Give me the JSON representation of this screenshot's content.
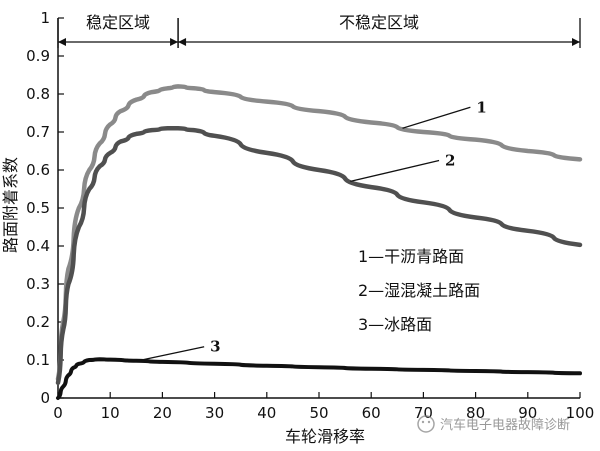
{
  "chart_data": {
    "type": "line",
    "xlabel": "车轮滑移率",
    "ylabel": "路面附着系数",
    "xlim": [
      0,
      100
    ],
    "ylim": [
      0,
      1
    ],
    "xticks": [
      "0",
      "10",
      "20",
      "30",
      "40",
      "50",
      "60",
      "70",
      "80",
      "90",
      "100"
    ],
    "yticks": [
      "0",
      "0.1",
      "0.2",
      "0.3",
      "0.4",
      "0.5",
      "0.6",
      "0.7",
      "0.8",
      "0.9",
      "1"
    ],
    "regions": [
      {
        "label": "稳定区域",
        "x_start": 0,
        "x_end": 23
      },
      {
        "label": "不稳定区域",
        "x_start": 23,
        "x_end": 100
      }
    ],
    "series": [
      {
        "name": "1",
        "legend": "1—干沥青路面",
        "color": "#8a8a8a",
        "points": [
          [
            0,
            0.05
          ],
          [
            1,
            0.2
          ],
          [
            2,
            0.34
          ],
          [
            4,
            0.5
          ],
          [
            6,
            0.6
          ],
          [
            8,
            0.67
          ],
          [
            10,
            0.72
          ],
          [
            12,
            0.755
          ],
          [
            15,
            0.785
          ],
          [
            18,
            0.805
          ],
          [
            21,
            0.815
          ],
          [
            23,
            0.82
          ],
          [
            26,
            0.815
          ],
          [
            30,
            0.805
          ],
          [
            40,
            0.78
          ],
          [
            50,
            0.755
          ],
          [
            60,
            0.725
          ],
          [
            70,
            0.7
          ],
          [
            80,
            0.68
          ],
          [
            90,
            0.65
          ],
          [
            100,
            0.628
          ]
        ],
        "callout": {
          "x": 66,
          "y": 0.71,
          "lx": 79,
          "ly": 0.765
        }
      },
      {
        "name": "2",
        "legend": "2—湿混凝土路面",
        "color": "#505050",
        "points": [
          [
            0,
            0.04
          ],
          [
            1,
            0.18
          ],
          [
            2,
            0.3
          ],
          [
            4,
            0.45
          ],
          [
            6,
            0.55
          ],
          [
            8,
            0.61
          ],
          [
            10,
            0.645
          ],
          [
            12,
            0.675
          ],
          [
            15,
            0.695
          ],
          [
            18,
            0.705
          ],
          [
            21,
            0.71
          ],
          [
            23,
            0.71
          ],
          [
            26,
            0.705
          ],
          [
            30,
            0.69
          ],
          [
            40,
            0.645
          ],
          [
            50,
            0.6
          ],
          [
            60,
            0.555
          ],
          [
            70,
            0.515
          ],
          [
            80,
            0.475
          ],
          [
            90,
            0.44
          ],
          [
            100,
            0.403
          ]
        ],
        "callout": {
          "x": 56,
          "y": 0.57,
          "lx": 73,
          "ly": 0.625
        }
      },
      {
        "name": "3",
        "legend": "3—冰路面",
        "color": "#111111",
        "points": [
          [
            0,
            0.0
          ],
          [
            1,
            0.03
          ],
          [
            2,
            0.06
          ],
          [
            3,
            0.08
          ],
          [
            4,
            0.09
          ],
          [
            6,
            0.1
          ],
          [
            8,
            0.102
          ],
          [
            10,
            0.101
          ],
          [
            15,
            0.098
          ],
          [
            20,
            0.095
          ],
          [
            30,
            0.09
          ],
          [
            40,
            0.085
          ],
          [
            50,
            0.081
          ],
          [
            60,
            0.077
          ],
          [
            70,
            0.074
          ],
          [
            80,
            0.071
          ],
          [
            90,
            0.068
          ],
          [
            100,
            0.065
          ]
        ],
        "callout": {
          "x": 15,
          "y": 0.097,
          "lx": 28,
          "ly": 0.135
        }
      }
    ],
    "legend_position": "right-middle"
  },
  "watermark": "汽车电子电器故障诊断"
}
